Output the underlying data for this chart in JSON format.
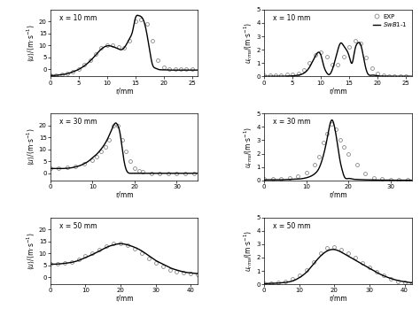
{
  "panels": [
    {
      "row": 0,
      "col": 0,
      "label": "x = 10 mm",
      "xlim": [
        0,
        26
      ],
      "ylim": [
        -3,
        25
      ],
      "xticks": [
        0,
        5,
        10,
        15,
        20,
        25
      ],
      "yticks": [
        0,
        5,
        10,
        15,
        20
      ],
      "ylabel_mean": true,
      "sim_x": [
        0,
        1,
        2,
        3,
        4,
        5,
        6,
        7,
        8,
        9,
        10,
        11,
        12,
        12.5,
        13,
        14,
        14.5,
        15,
        15.5,
        16,
        16.5,
        17,
        17.5,
        18,
        18.5,
        19,
        20,
        21,
        22,
        23,
        24,
        25,
        26
      ],
      "sim_y": [
        -2.5,
        -2.5,
        -2.2,
        -1.8,
        -1,
        0,
        1.5,
        3.5,
        6,
        8.5,
        9.8,
        9.5,
        8.5,
        8.2,
        9,
        13,
        16,
        21.5,
        22.5,
        22,
        20,
        15,
        8,
        2,
        0.5,
        0,
        -0.2,
        -0.3,
        -0.3,
        -0.3,
        -0.3,
        -0.3,
        -0.3
      ],
      "exp_x": [
        0,
        1,
        2,
        3,
        4,
        5,
        6,
        7,
        8,
        9,
        10,
        11,
        12,
        13,
        14,
        15,
        16,
        17,
        18,
        19,
        20,
        21,
        22,
        23,
        24,
        25
      ],
      "exp_y": [
        -2.5,
        -2.5,
        -2.2,
        -1.8,
        -1,
        0,
        2,
        4,
        6.5,
        9,
        10,
        10,
        9.5,
        9,
        12,
        20,
        21,
        19,
        12,
        4,
        1,
        0.2,
        0,
        0,
        0,
        0
      ]
    },
    {
      "row": 0,
      "col": 1,
      "label": "x = 10 mm",
      "xlim": [
        0,
        26
      ],
      "ylim": [
        0,
        5.0
      ],
      "xticks": [
        0,
        5,
        10,
        15,
        20,
        25
      ],
      "yticks": [
        0.0,
        1.0,
        2.0,
        3.0,
        4.0,
        5.0
      ],
      "ylabel_mean": false,
      "sim_x": [
        0,
        1,
        2,
        3,
        4,
        5,
        6,
        7,
        8,
        8.5,
        9,
        9.5,
        10,
        10.5,
        11,
        11.5,
        12,
        12.5,
        13,
        13.5,
        14,
        14.5,
        15,
        15.5,
        16,
        16.5,
        17,
        17.5,
        18,
        19,
        20,
        21,
        22,
        23,
        24,
        25,
        26
      ],
      "sim_y": [
        0.02,
        0.02,
        0.02,
        0.02,
        0.03,
        0.05,
        0.1,
        0.25,
        0.7,
        1.1,
        1.5,
        1.8,
        1.6,
        0.8,
        0.3,
        0.15,
        0.5,
        1.2,
        2.0,
        2.5,
        2.3,
        2.0,
        1.5,
        1.0,
        2.0,
        2.5,
        2.4,
        1.5,
        0.5,
        0.1,
        0.05,
        0.03,
        0.02,
        0.02,
        0.02,
        0.02,
        0.02
      ],
      "exp_x": [
        0,
        1,
        2,
        3,
        4,
        5,
        6,
        7,
        8,
        9,
        10,
        11,
        12,
        13,
        14,
        15,
        16,
        17,
        18,
        19,
        20,
        21,
        22,
        23,
        24,
        25
      ],
      "exp_y": [
        0.08,
        0.1,
        0.1,
        0.12,
        0.15,
        0.18,
        0.25,
        0.5,
        1.0,
        1.6,
        1.8,
        1.5,
        0.9,
        0.9,
        1.5,
        2.2,
        2.7,
        2.5,
        1.4,
        0.6,
        0.2,
        0.1,
        0.05,
        0.05,
        0.05,
        0.05
      ]
    },
    {
      "row": 1,
      "col": 0,
      "label": "x = 30 mm",
      "xlim": [
        0,
        35
      ],
      "ylim": [
        -3,
        25
      ],
      "xticks": [
        0,
        10,
        20,
        30
      ],
      "yticks": [
        0,
        5,
        10,
        15,
        20
      ],
      "ylabel_mean": true,
      "sim_x": [
        0,
        1,
        2,
        3,
        4,
        5,
        6,
        7,
        8,
        9,
        10,
        11,
        12,
        13,
        14,
        15,
        15.5,
        16,
        16.5,
        17,
        17.5,
        18,
        18.5,
        19,
        20,
        21,
        22,
        23,
        24,
        25,
        26,
        27,
        28,
        29,
        30,
        31,
        32,
        33,
        34,
        35
      ],
      "sim_y": [
        2,
        2,
        2,
        2,
        2.1,
        2.3,
        2.7,
        3.2,
        4,
        5,
        6.5,
        8,
        10,
        12.5,
        16,
        20,
        21,
        20,
        17,
        11,
        5,
        1.5,
        0.2,
        0,
        0,
        0,
        0,
        0,
        0,
        0,
        0,
        0,
        0,
        0,
        0,
        0,
        0,
        0,
        0,
        0
      ],
      "exp_x": [
        0,
        2,
        4,
        6,
        8,
        10,
        11,
        12,
        13,
        14,
        15,
        16,
        17,
        18,
        19,
        20,
        21,
        22,
        24,
        26,
        28,
        30,
        32,
        34
      ],
      "exp_y": [
        2,
        2,
        2.5,
        3,
        4,
        5.5,
        7,
        9,
        11,
        14,
        20,
        20,
        14,
        9,
        5,
        2,
        1,
        0.5,
        0,
        0,
        0,
        0,
        0,
        0
      ]
    },
    {
      "row": 1,
      "col": 1,
      "label": "x = 30 mm",
      "xlim": [
        0,
        35
      ],
      "ylim": [
        0,
        5.0
      ],
      "xticks": [
        0,
        10,
        20,
        30
      ],
      "yticks": [
        0.0,
        1.0,
        2.0,
        3.0,
        4.0,
        5.0
      ],
      "ylabel_mean": false,
      "sim_x": [
        0,
        2,
        4,
        6,
        8,
        10,
        12,
        13,
        14,
        15,
        16,
        17,
        17.5,
        18,
        18.5,
        19,
        20,
        21,
        22,
        23,
        24,
        25,
        26,
        27,
        28,
        29,
        30,
        31,
        32,
        33,
        34,
        35
      ],
      "sim_y": [
        0.05,
        0.05,
        0.05,
        0.08,
        0.1,
        0.2,
        0.5,
        0.9,
        1.8,
        3.2,
        4.5,
        3.5,
        2.5,
        1.5,
        0.8,
        0.3,
        0.15,
        0.1,
        0.08,
        0.06,
        0.05,
        0.04,
        0.04,
        0.03,
        0.03,
        0.03,
        0.02,
        0.02,
        0.02,
        0.02,
        0.02,
        0.02
      ],
      "exp_x": [
        0,
        2,
        4,
        6,
        8,
        10,
        12,
        13,
        14,
        15,
        16,
        17,
        18,
        19,
        20,
        22,
        24,
        26,
        28,
        30,
        32,
        34
      ],
      "exp_y": [
        0.1,
        0.1,
        0.15,
        0.2,
        0.3,
        0.6,
        1.2,
        1.8,
        2.8,
        3.5,
        4.2,
        3.8,
        3.0,
        2.5,
        2.0,
        1.2,
        0.5,
        0.2,
        0.1,
        0.05,
        0.05,
        0.05
      ]
    },
    {
      "row": 2,
      "col": 0,
      "label": "x = 50 mm",
      "xlim": [
        0,
        42
      ],
      "ylim": [
        -3,
        25
      ],
      "xticks": [
        0,
        10,
        20,
        30,
        40
      ],
      "yticks": [
        0,
        5,
        10,
        15,
        20
      ],
      "ylabel_mean": true,
      "sim_x": [
        0,
        2,
        4,
        6,
        8,
        10,
        12,
        14,
        16,
        18,
        20,
        22,
        24,
        26,
        28,
        30,
        32,
        34,
        36,
        38,
        40,
        42
      ],
      "sim_y": [
        5.5,
        5.5,
        5.8,
        6.2,
        7,
        8.2,
        9.5,
        11,
        12.5,
        13.5,
        14,
        13.5,
        12.5,
        11,
        9,
        7,
        5.5,
        4,
        3,
        2.2,
        1.8,
        1.5
      ],
      "exp_x": [
        0,
        2,
        4,
        6,
        8,
        10,
        12,
        14,
        16,
        18,
        20,
        22,
        24,
        26,
        28,
        30,
        32,
        34,
        36,
        38,
        40,
        42
      ],
      "exp_y": [
        5.5,
        5.5,
        6,
        6.5,
        7.5,
        8.8,
        10,
        11.5,
        13,
        14,
        14.2,
        13.5,
        12,
        10,
        8,
        6,
        4.5,
        3,
        2.2,
        1.8,
        1.5,
        1.3
      ]
    },
    {
      "row": 2,
      "col": 1,
      "label": "x = 50 mm",
      "xlim": [
        0,
        42
      ],
      "ylim": [
        0,
        5.0
      ],
      "xticks": [
        0,
        10,
        20,
        30,
        40
      ],
      "yticks": [
        0.0,
        1.0,
        2.0,
        3.0,
        4.0,
        5.0
      ],
      "ylabel_mean": false,
      "sim_x": [
        0,
        2,
        4,
        6,
        8,
        10,
        12,
        14,
        16,
        18,
        20,
        22,
        24,
        26,
        28,
        30,
        32,
        34,
        36,
        38,
        40,
        42
      ],
      "sim_y": [
        0.05,
        0.08,
        0.1,
        0.15,
        0.25,
        0.5,
        0.9,
        1.5,
        2.1,
        2.5,
        2.6,
        2.4,
        2.1,
        1.8,
        1.5,
        1.2,
        0.9,
        0.65,
        0.45,
        0.3,
        0.2,
        0.12
      ],
      "exp_x": [
        0,
        2,
        4,
        6,
        8,
        10,
        12,
        14,
        16,
        18,
        20,
        22,
        24,
        26,
        28,
        30,
        32,
        34,
        36,
        38,
        40,
        42
      ],
      "exp_y": [
        0.08,
        0.1,
        0.15,
        0.25,
        0.4,
        0.7,
        1.1,
        1.7,
        2.3,
        2.7,
        2.8,
        2.6,
        2.3,
        2.0,
        1.6,
        1.3,
        0.95,
        0.65,
        0.4,
        0.25,
        0.18,
        0.1
      ]
    }
  ],
  "legend_label_exp": "EXP",
  "legend_label_sim": "SwB1-1",
  "line_color": "#000000",
  "circle_color": "#888888",
  "background_color": "#ffffff"
}
